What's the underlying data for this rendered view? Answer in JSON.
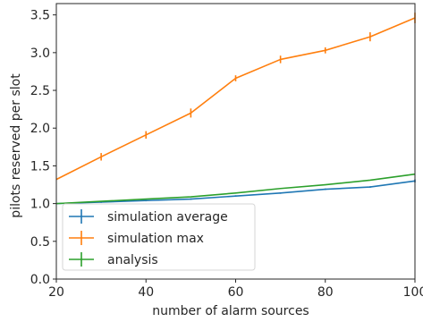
{
  "chart_data": {
    "type": "line",
    "title": "",
    "xlabel": "number of alarm sources",
    "ylabel": "pilots reserved per slot",
    "x": [
      20,
      30,
      40,
      50,
      60,
      70,
      80,
      90,
      100
    ],
    "xlim": [
      20,
      100
    ],
    "ylim": [
      0.0,
      3.65
    ],
    "xticks": [
      "20",
      "40",
      "60",
      "80",
      "100"
    ],
    "yticks": [
      "0.0",
      "0.5",
      "1.0",
      "1.5",
      "2.0",
      "2.5",
      "3.0",
      "3.5"
    ],
    "grid": false,
    "legend_position": "lower-left",
    "series": [
      {
        "name": "simulation average",
        "color": "#1f77b4",
        "values": [
          1.0,
          1.02,
          1.04,
          1.06,
          1.1,
          1.14,
          1.19,
          1.22,
          1.3
        ],
        "errors": [
          0.0,
          0.01,
          0.01,
          0.01,
          0.01,
          0.01,
          0.01,
          0.01,
          0.02
        ]
      },
      {
        "name": "simulation max",
        "color": "#ff7f0e",
        "values": [
          1.32,
          1.62,
          1.91,
          2.2,
          2.66,
          2.91,
          3.03,
          3.21,
          3.46
        ],
        "errors": [
          0.0,
          0.05,
          0.05,
          0.06,
          0.04,
          0.05,
          0.04,
          0.06,
          0.07
        ]
      },
      {
        "name": "analysis",
        "color": "#2ca02c",
        "values": [
          1.0,
          1.03,
          1.06,
          1.09,
          1.14,
          1.2,
          1.25,
          1.31,
          1.39
        ],
        "errors": [
          0.0,
          0.0,
          0.0,
          0.0,
          0.0,
          0.0,
          0.0,
          0.0,
          0.0
        ]
      }
    ]
  }
}
